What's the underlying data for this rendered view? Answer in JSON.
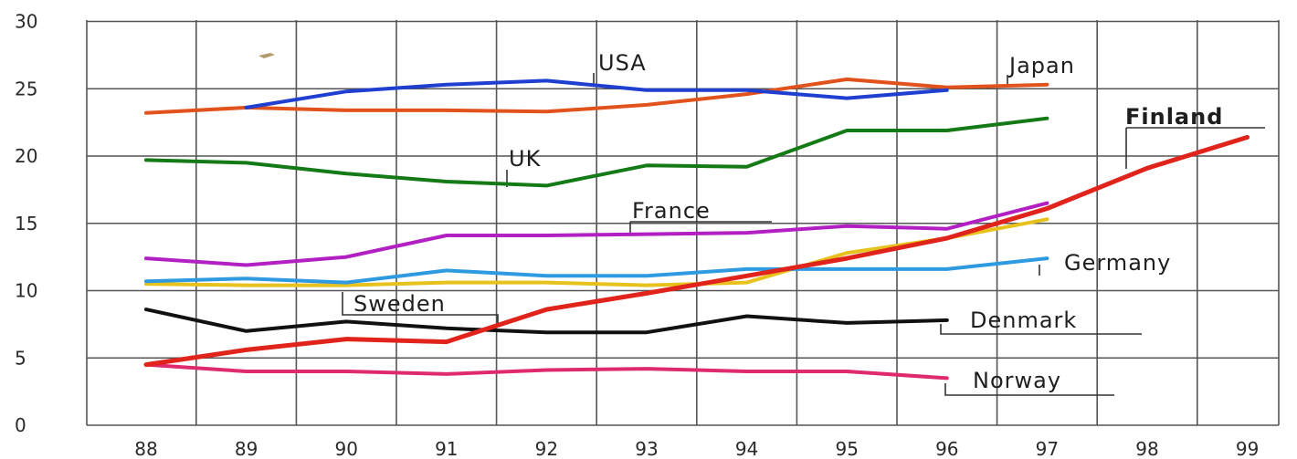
{
  "chart_data": {
    "type": "line",
    "title": "",
    "xlabel": "",
    "ylabel": "",
    "x": [
      "88",
      "89",
      "90",
      "91",
      "92",
      "93",
      "94",
      "95",
      "96",
      "97",
      "98",
      "99"
    ],
    "ylim": [
      0,
      30
    ],
    "yticks": [
      "0",
      "5",
      "10",
      "15",
      "20",
      "25",
      "30"
    ],
    "grid": true,
    "series": [
      {
        "name": "USA",
        "color": "#1f3fd0",
        "values": [
          null,
          23.6,
          24.8,
          25.3,
          25.6,
          24.9,
          24.9,
          24.3,
          24.9,
          null,
          null,
          null
        ]
      },
      {
        "name": "Japan",
        "color": "#e2521c",
        "values": [
          23.2,
          23.6,
          23.4,
          23.4,
          23.3,
          23.8,
          24.6,
          25.7,
          25.1,
          25.3,
          null,
          null
        ]
      },
      {
        "name": "UK",
        "color": "#137a16",
        "values": [
          19.7,
          19.5,
          18.7,
          18.1,
          17.8,
          19.3,
          19.2,
          21.9,
          21.9,
          22.8,
          null,
          null
        ]
      },
      {
        "name": "France",
        "color": "#b21fc3",
        "values": [
          12.4,
          11.9,
          12.5,
          14.1,
          14.1,
          14.2,
          14.3,
          14.8,
          14.6,
          16.5,
          null,
          null
        ]
      },
      {
        "name": "Germany",
        "color": "#2e9ae0",
        "values": [
          10.7,
          10.9,
          10.6,
          11.5,
          11.1,
          11.1,
          11.6,
          11.6,
          11.6,
          12.4,
          null,
          null
        ]
      },
      {
        "name": "Sweden",
        "color": "#e8c21c",
        "values": [
          10.5,
          10.4,
          10.4,
          10.6,
          10.6,
          10.4,
          10.6,
          12.8,
          13.9,
          15.3,
          null,
          null
        ]
      },
      {
        "name": "Denmark",
        "color": "#111111",
        "values": [
          8.6,
          7.0,
          7.7,
          7.2,
          6.9,
          6.9,
          8.1,
          7.6,
          7.8,
          null,
          null,
          null
        ]
      },
      {
        "name": "Norway",
        "color": "#df2a6e",
        "values": [
          4.5,
          4.0,
          4.0,
          3.8,
          4.1,
          4.2,
          4.0,
          4.0,
          3.5,
          null,
          null,
          null
        ]
      },
      {
        "name": "Finland",
        "color": "#e0241b",
        "values": [
          4.5,
          5.6,
          6.4,
          6.2,
          8.6,
          9.8,
          11.1,
          12.4,
          13.9,
          16.1,
          19.1,
          21.4
        ]
      }
    ]
  }
}
